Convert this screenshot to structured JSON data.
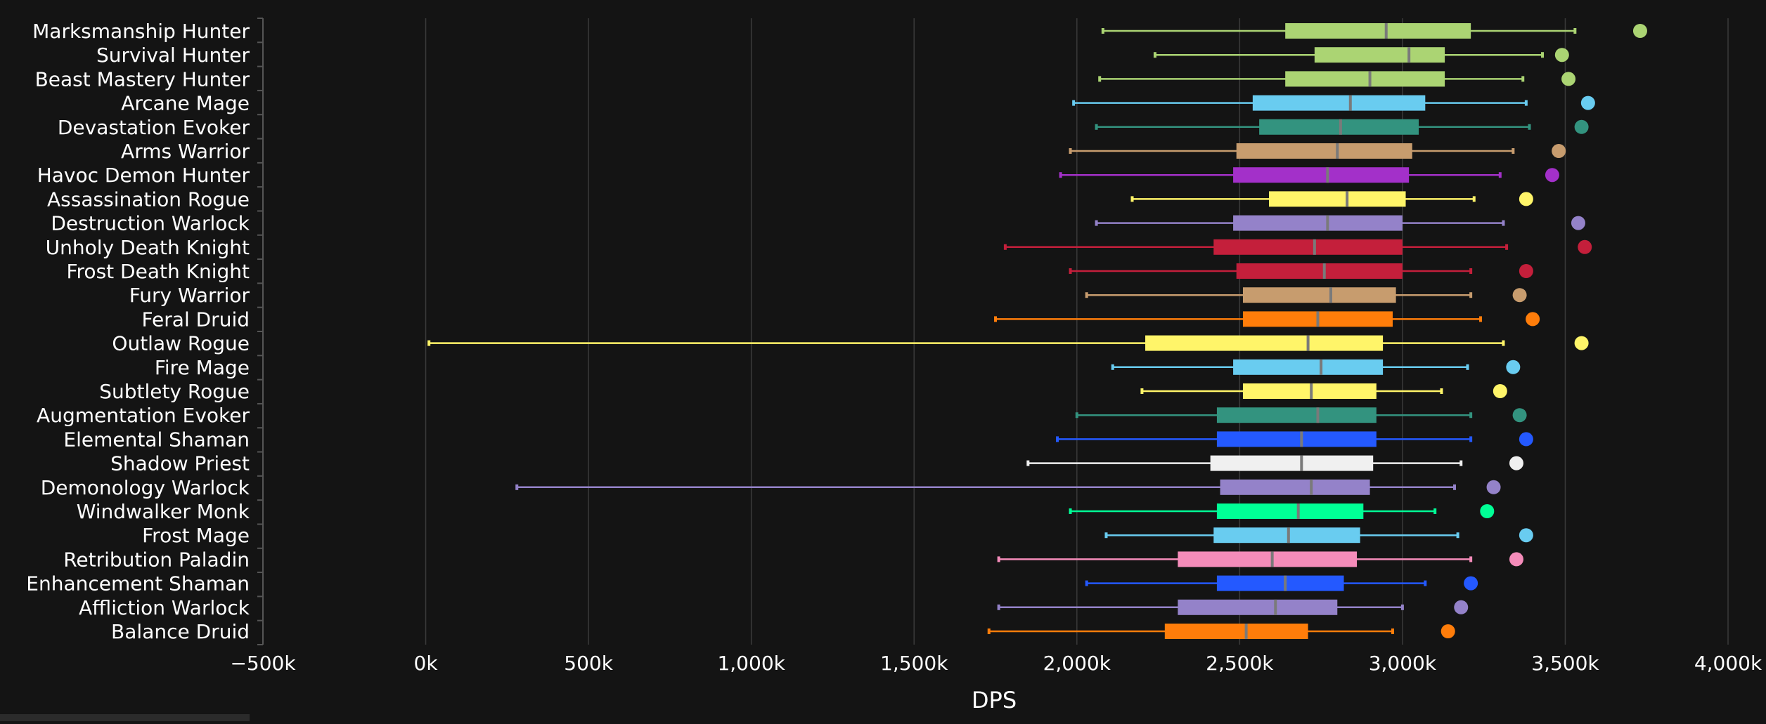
{
  "chart_data": {
    "type": "box",
    "orientation": "horizontal",
    "xlabel": "DPS",
    "xlim": [
      -500000,
      4000000
    ],
    "xticks": [
      -500000,
      0,
      500000,
      1000000,
      1500000,
      2000000,
      2500000,
      3000000,
      3500000,
      4000000
    ],
    "xtick_labels": [
      "−500k",
      "0k",
      "500k",
      "1,000k",
      "1,500k",
      "2,000k",
      "2,500k",
      "3,000k",
      "3,500k",
      "4,000k"
    ],
    "grid": true,
    "background": "#141414",
    "grid_color": "#3a3a3a",
    "median_color": "#7a7a7a",
    "categories": [
      "Marksmanship Hunter",
      "Survival Hunter",
      "Beast Mastery Hunter",
      "Arcane Mage",
      "Devastation Evoker",
      "Arms Warrior",
      "Havoc Demon Hunter",
      "Assassination Rogue",
      "Destruction Warlock",
      "Unholy Death Knight",
      "Frost Death Knight",
      "Fury Warrior",
      "Feral Druid",
      "Outlaw Rogue",
      "Fire Mage",
      "Subtlety Rogue",
      "Augmentation Evoker",
      "Elemental Shaman",
      "Shadow Priest",
      "Demonology Warlock",
      "Windwalker Monk",
      "Frost Mage",
      "Retribution Paladin",
      "Enhancement Shaman",
      "Affliction Warlock",
      "Balance Druid"
    ],
    "series": [
      {
        "min": 2080000,
        "q1": 2640000,
        "median": 2950000,
        "q3": 3210000,
        "max": 3530000,
        "top": 3730000,
        "color": "#abd473"
      },
      {
        "min": 2240000,
        "q1": 2730000,
        "median": 3020000,
        "q3": 3130000,
        "max": 3430000,
        "top": 3490000,
        "color": "#abd473"
      },
      {
        "min": 2070000,
        "q1": 2640000,
        "median": 2900000,
        "q3": 3130000,
        "max": 3370000,
        "top": 3510000,
        "color": "#abd473"
      },
      {
        "min": 1990000,
        "q1": 2540000,
        "median": 2840000,
        "q3": 3070000,
        "max": 3380000,
        "top": 3570000,
        "color": "#69ccf0"
      },
      {
        "min": 2060000,
        "q1": 2560000,
        "median": 2810000,
        "q3": 3050000,
        "max": 3390000,
        "top": 3550000,
        "color": "#33937f"
      },
      {
        "min": 1980000,
        "q1": 2490000,
        "median": 2800000,
        "q3": 3030000,
        "max": 3340000,
        "top": 3480000,
        "color": "#c79c6e"
      },
      {
        "min": 1950000,
        "q1": 2480000,
        "median": 2770000,
        "q3": 3020000,
        "max": 3300000,
        "top": 3460000,
        "color": "#a330c9"
      },
      {
        "min": 2170000,
        "q1": 2590000,
        "median": 2830000,
        "q3": 3010000,
        "max": 3220000,
        "top": 3380000,
        "color": "#fff569"
      },
      {
        "min": 2060000,
        "q1": 2480000,
        "median": 2770000,
        "q3": 3000000,
        "max": 3310000,
        "top": 3540000,
        "color": "#9482c9"
      },
      {
        "min": 1780000,
        "q1": 2420000,
        "median": 2730000,
        "q3": 3000000,
        "max": 3320000,
        "top": 3560000,
        "color": "#c41f3b"
      },
      {
        "min": 1980000,
        "q1": 2490000,
        "median": 2760000,
        "q3": 3000000,
        "max": 3210000,
        "top": 3380000,
        "color": "#c41f3b"
      },
      {
        "min": 2030000,
        "q1": 2510000,
        "median": 2780000,
        "q3": 2980000,
        "max": 3210000,
        "top": 3360000,
        "color": "#c79c6e"
      },
      {
        "min": 1750000,
        "q1": 2510000,
        "median": 2740000,
        "q3": 2970000,
        "max": 3240000,
        "top": 3400000,
        "color": "#ff7d0a"
      },
      {
        "min": 10000,
        "q1": 2210000,
        "median": 2710000,
        "q3": 2940000,
        "max": 3310000,
        "top": 3550000,
        "color": "#fff569"
      },
      {
        "min": 2110000,
        "q1": 2480000,
        "median": 2750000,
        "q3": 2940000,
        "max": 3200000,
        "top": 3340000,
        "color": "#69ccf0"
      },
      {
        "min": 2200000,
        "q1": 2510000,
        "median": 2720000,
        "q3": 2920000,
        "max": 3120000,
        "top": 3300000,
        "color": "#fff569"
      },
      {
        "min": 2000000,
        "q1": 2430000,
        "median": 2740000,
        "q3": 2920000,
        "max": 3210000,
        "top": 3360000,
        "color": "#33937f"
      },
      {
        "min": 1940000,
        "q1": 2430000,
        "median": 2690000,
        "q3": 2920000,
        "max": 3210000,
        "top": 3380000,
        "color": "#2459ff"
      },
      {
        "min": 1850000,
        "q1": 2410000,
        "median": 2690000,
        "q3": 2910000,
        "max": 3180000,
        "top": 3350000,
        "color": "#f0f0f0"
      },
      {
        "min": 280000,
        "q1": 2440000,
        "median": 2720000,
        "q3": 2900000,
        "max": 3160000,
        "top": 3280000,
        "color": "#9482c9"
      },
      {
        "min": 1980000,
        "q1": 2430000,
        "median": 2680000,
        "q3": 2880000,
        "max": 3100000,
        "top": 3260000,
        "color": "#00ff96"
      },
      {
        "min": 2090000,
        "q1": 2420000,
        "median": 2650000,
        "q3": 2870000,
        "max": 3170000,
        "top": 3380000,
        "color": "#69ccf0"
      },
      {
        "min": 1760000,
        "q1": 2310000,
        "median": 2600000,
        "q3": 2860000,
        "max": 3210000,
        "top": 3350000,
        "color": "#f58cba"
      },
      {
        "min": 2030000,
        "q1": 2430000,
        "median": 2640000,
        "q3": 2820000,
        "max": 3070000,
        "top": 3210000,
        "color": "#2459ff"
      },
      {
        "min": 1760000,
        "q1": 2310000,
        "median": 2610000,
        "q3": 2800000,
        "max": 3000000,
        "top": 3180000,
        "color": "#9482c9"
      },
      {
        "min": 1730000,
        "q1": 2270000,
        "median": 2520000,
        "q3": 2710000,
        "max": 2970000,
        "top": 3140000,
        "color": "#ff7d0a"
      }
    ]
  }
}
